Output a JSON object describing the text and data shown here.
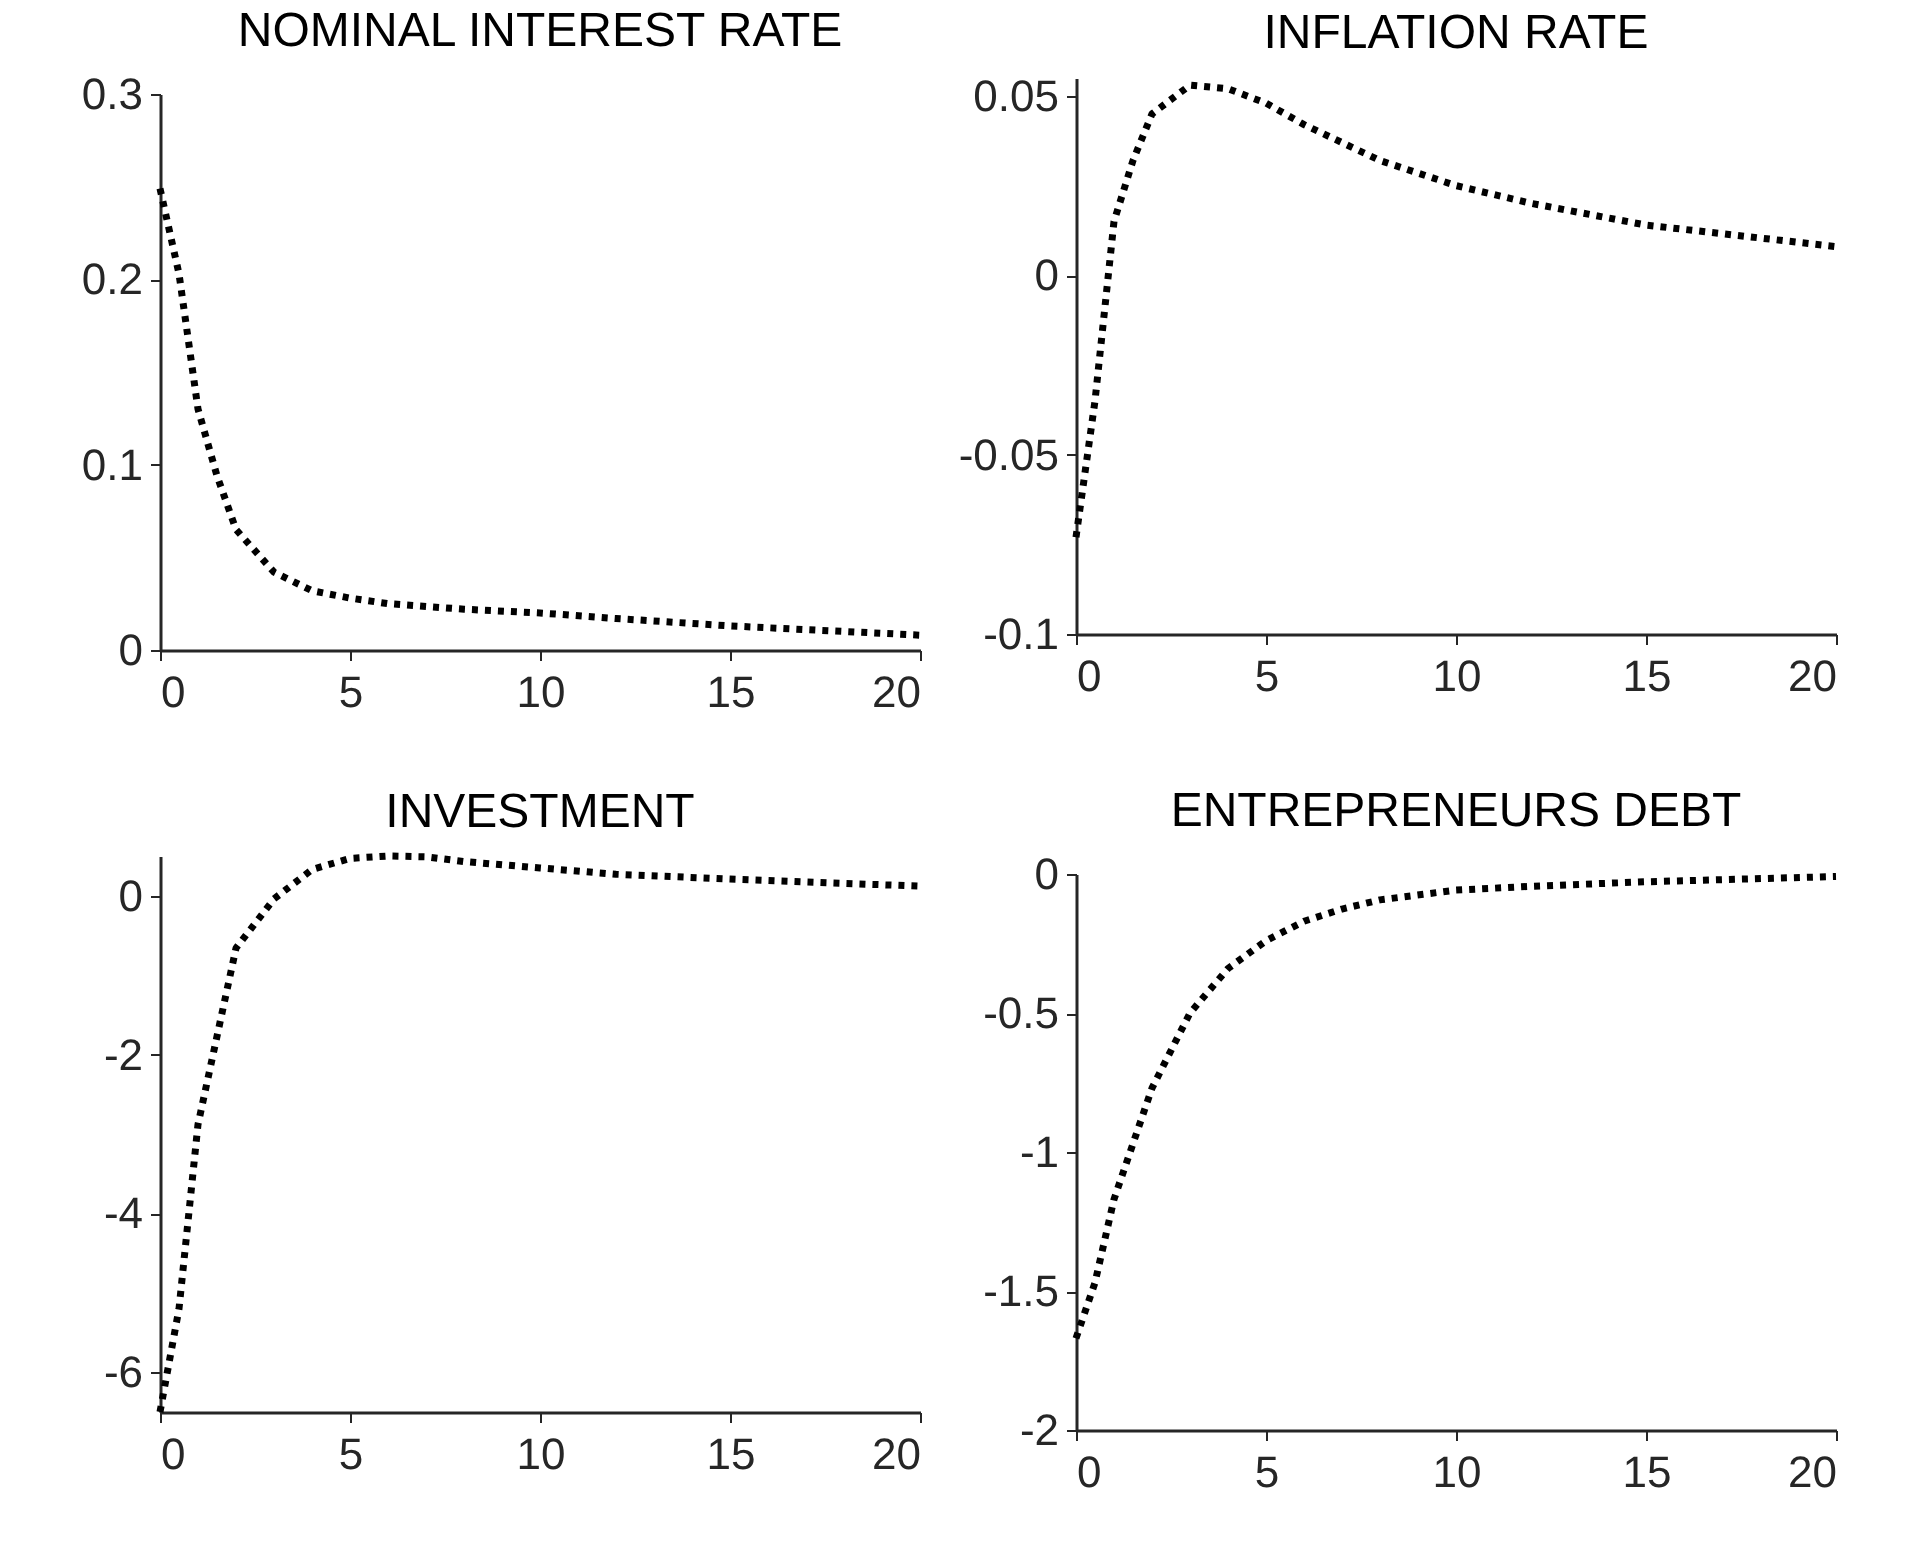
{
  "chart_data": [
    {
      "type": "line",
      "title": "NOMINAL INTEREST RATE",
      "x": [
        0,
        0.5,
        1,
        1.5,
        2,
        3,
        4,
        5,
        6,
        8,
        10,
        12,
        15,
        20
      ],
      "series": [
        {
          "color": "#000000",
          "values": [
            0.249,
            0.203,
            0.13,
            0.094,
            0.065,
            0.042,
            0.032,
            0.028,
            0.025,
            0.022,
            0.02,
            0.017,
            0.013,
            0.008
          ]
        }
      ],
      "xlim": [
        0,
        20
      ],
      "xticks": [
        0,
        5,
        10,
        15,
        20
      ],
      "ylim": [
        0,
        0.3
      ],
      "yticks": [
        0,
        0.1,
        0.2,
        0.3
      ],
      "grid": false,
      "line_style": "dotted",
      "marker": "none"
    },
    {
      "type": "line",
      "title": "INFLATION RATE",
      "x": [
        0,
        0.5,
        1,
        1.5,
        2,
        3,
        4,
        5,
        6,
        8,
        10,
        12,
        15,
        20
      ],
      "series": [
        {
          "color": "#000000",
          "values": [
            -0.073,
            -0.035,
            0.015,
            0.032,
            0.045,
            0.053,
            0.052,
            0.048,
            0.042,
            0.032,
            0.025,
            0.02,
            0.014,
            0.008
          ]
        }
      ],
      "xlim": [
        0,
        20
      ],
      "xticks": [
        0,
        5,
        10,
        15,
        20
      ],
      "ylim": [
        -0.1,
        0.055
      ],
      "yticks": [
        -0.1,
        -0.05,
        0,
        0.05
      ],
      "grid": false,
      "line_style": "dotted",
      "marker": "none"
    },
    {
      "type": "line",
      "title": "INVESTMENT",
      "x": [
        0,
        0.5,
        1,
        2,
        3,
        4,
        5,
        6,
        7,
        8,
        10,
        12,
        15,
        20
      ],
      "series": [
        {
          "color": "#000000",
          "values": [
            -6.5,
            -5.2,
            -2.88,
            -0.66,
            -0.04,
            0.33,
            0.47,
            0.5,
            0.49,
            0.43,
            0.35,
            0.27,
            0.21,
            0.12
          ]
        }
      ],
      "xlim": [
        0,
        20
      ],
      "xticks": [
        0,
        5,
        10,
        15,
        20
      ],
      "ylim": [
        -6.5,
        0.5
      ],
      "yticks": [
        -6,
        -4,
        -2,
        0
      ],
      "grid": false,
      "line_style": "dotted",
      "marker": "none"
    },
    {
      "type": "line",
      "title": "ENTREPRENEURS DEBT",
      "x": [
        0,
        0.5,
        1,
        2,
        3,
        4,
        5,
        6,
        7,
        8,
        10,
        12,
        15,
        20
      ],
      "series": [
        {
          "color": "#000000",
          "values": [
            -1.67,
            -1.47,
            -1.17,
            -0.77,
            -0.5,
            -0.34,
            -0.24,
            -0.17,
            -0.126,
            -0.093,
            -0.058,
            -0.044,
            -0.028,
            -0.009
          ]
        }
      ],
      "xlim": [
        0,
        20
      ],
      "xticks": [
        0,
        5,
        10,
        15,
        20
      ],
      "ylim": [
        -2,
        0
      ],
      "yticks": [
        -2,
        -1.5,
        -1,
        -0.5,
        0
      ],
      "grid": false,
      "line_style": "dotted",
      "marker": "none"
    }
  ]
}
